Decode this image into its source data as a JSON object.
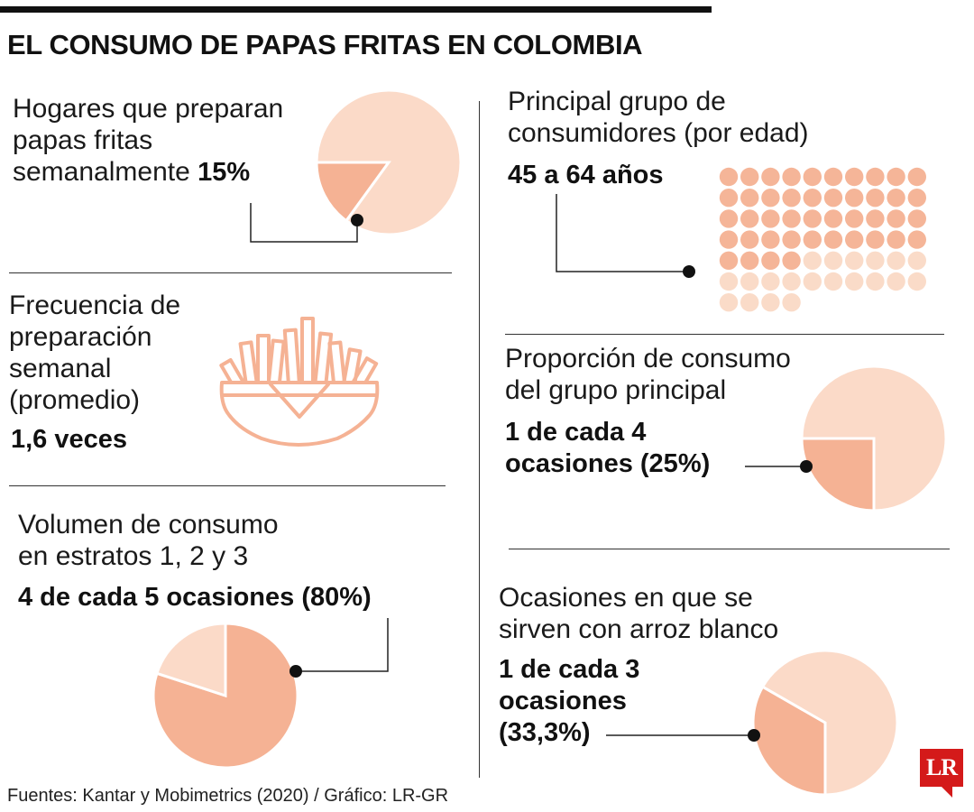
{
  "title": "EL CONSUMO DE PAPAS FRITAS EN COLOMBIA",
  "source": "Fuentes: Kantar y Mobimetrics (2020) / Gráfico: LR-GR",
  "logo": "LR",
  "colors": {
    "light": "#fbdac8",
    "dark": "#f5b294",
    "dots_light": "#fadbc8",
    "dots_dark": "#f5b598",
    "icon": "#f5b294",
    "logo": "#d41a1a"
  },
  "hogares": {
    "label_line1": "Hogares que preparan",
    "label_line2": "papas fritas",
    "label_line3": "semanalmente",
    "value": "15%"
  },
  "frecuencia": {
    "label_line1": "Frecuencia de",
    "label_line2": "preparación",
    "label_line3": "semanal",
    "label_line4": "(promedio)",
    "value": "1,6 veces",
    "icon": "french-fries-icon"
  },
  "volumen": {
    "label_line1": "Volumen de consumo",
    "label_line2": "en estratos 1, 2 y 3",
    "value": "4 de cada 5 ocasiones (80%)"
  },
  "grupo": {
    "label_line1": "Principal grupo de",
    "label_line2": "consumidores (por edad)",
    "value": "45 a 64 años"
  },
  "proporcion": {
    "label_line1": "Proporción de consumo",
    "label_line2": "del grupo principal",
    "value_line1": "1 de cada 4",
    "value_line2": "ocasiones (25%)"
  },
  "arroz": {
    "label_line1": "Ocasiones en que se",
    "label_line2": "sirven con arroz blanco",
    "value_line1": "1 de cada 3",
    "value_line2": "ocasiones",
    "value_line3": "(33,3%)"
  },
  "chart_data": [
    {
      "type": "pie",
      "values": [
        15,
        85
      ],
      "highlight_index": 0
    },
    {
      "type": "pie",
      "values": [
        80,
        20
      ],
      "highlight_index": 0
    },
    {
      "type": "pie",
      "values": [
        25,
        75
      ],
      "highlight_index": 0
    },
    {
      "type": "pie",
      "values": [
        33.3,
        66.7
      ],
      "highlight_index": 0
    },
    {
      "type": "dot-grid",
      "total": 64,
      "highlighted": 44,
      "columns": 10
    }
  ]
}
